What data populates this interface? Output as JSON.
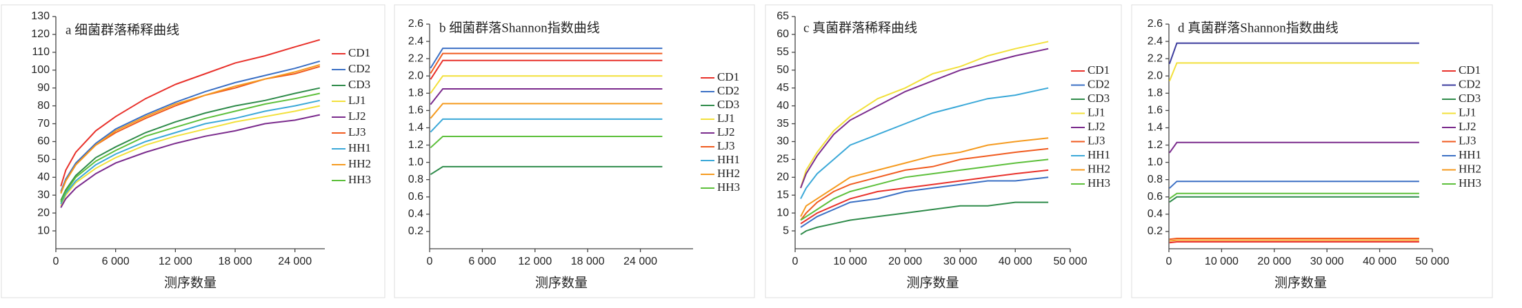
{
  "chart_data": [
    {
      "type": "line",
      "title": "a 细菌群落稀释曲线",
      "xlabel": "测序数量",
      "x": [
        500,
        1000,
        2000,
        4000,
        6000,
        9000,
        12000,
        15000,
        18000,
        21000,
        24000,
        26500
      ],
      "xlim": [
        0,
        27000
      ],
      "ylim": [
        0,
        130
      ],
      "xticks": [
        0,
        {
          "value": 6000,
          "label": "6 000"
        },
        {
          "value": 12000,
          "label": "12 000"
        },
        {
          "value": 18000,
          "label": "18 000"
        },
        {
          "value": 24000,
          "label": "24 000"
        }
      ],
      "yticks": [
        10,
        20,
        30,
        40,
        50,
        60,
        70,
        80,
        90,
        100,
        110,
        120,
        130
      ],
      "series": [
        {
          "name": "CD1",
          "color": "#e8302a",
          "values": [
            35,
            44,
            54,
            66,
            74,
            84,
            92,
            98,
            104,
            108,
            113,
            117
          ]
        },
        {
          "name": "CD2",
          "color": "#3a6fc4",
          "values": [
            32,
            39,
            48,
            59,
            67,
            75,
            82,
            88,
            93,
            97,
            101,
            105
          ]
        },
        {
          "name": "CD3",
          "color": "#2e8b4a",
          "values": [
            27,
            33,
            41,
            51,
            57,
            65,
            71,
            76,
            80,
            83,
            87,
            90
          ]
        },
        {
          "name": "LJ1",
          "color": "#f2e03a",
          "values": [
            24,
            30,
            37,
            45,
            51,
            58,
            63,
            67,
            71,
            74,
            77,
            80
          ]
        },
        {
          "name": "LJ2",
          "color": "#7a2a8c",
          "values": [
            23,
            28,
            34,
            42,
            48,
            54,
            59,
            63,
            66,
            70,
            72,
            75
          ]
        },
        {
          "name": "LJ3",
          "color": "#f05a1e",
          "values": [
            31,
            38,
            47,
            58,
            65,
            73,
            80,
            86,
            90,
            95,
            98,
            102
          ]
        },
        {
          "name": "HH1",
          "color": "#3aa8d8",
          "values": [
            25,
            31,
            38,
            47,
            53,
            60,
            65,
            70,
            73,
            77,
            80,
            83
          ]
        },
        {
          "name": "HH2",
          "color": "#f59a1e",
          "values": [
            31,
            38,
            47,
            58,
            66,
            74,
            81,
            86,
            91,
            95,
            99,
            103
          ]
        },
        {
          "name": "HH3",
          "color": "#5cbf3a",
          "values": [
            26,
            32,
            40,
            49,
            55,
            63,
            68,
            73,
            77,
            81,
            84,
            87
          ]
        }
      ]
    },
    {
      "type": "line",
      "title": "b 细菌群落Shannon指数曲线",
      "xlabel": "测序数量",
      "x": [
        100,
        1500,
        26500
      ],
      "xlim": [
        0,
        30000
      ],
      "ylim": [
        0,
        2.6
      ],
      "xticks": [
        0,
        {
          "value": 6000,
          "label": "6 000"
        },
        {
          "value": 12000,
          "label": "12 000"
        },
        {
          "value": 18000,
          "label": "18 000"
        },
        {
          "value": 24000,
          "label": "24 000"
        }
      ],
      "yticks": [
        0.2,
        0.4,
        0.6,
        0.8,
        {
          "value": 1,
          "label": "1.0"
        },
        1.2,
        1.4,
        1.6,
        1.8,
        {
          "value": 2,
          "label": "2.0"
        },
        2.2,
        2.4,
        2.6
      ],
      "series": [
        {
          "name": "CD1",
          "color": "#e8302a",
          "values": [
            1.96,
            2.18,
            2.18
          ]
        },
        {
          "name": "CD2",
          "color": "#3a6fc4",
          "values": [
            2.09,
            2.32,
            2.32
          ]
        },
        {
          "name": "CD3",
          "color": "#2e8b4a",
          "values": [
            0.86,
            0.95,
            0.95
          ]
        },
        {
          "name": "LJ1",
          "color": "#f2e03a",
          "values": [
            1.8,
            2,
            2
          ]
        },
        {
          "name": "LJ2",
          "color": "#7a2a8c",
          "values": [
            1.67,
            1.85,
            1.85
          ]
        },
        {
          "name": "LJ3",
          "color": "#f05a1e",
          "values": [
            2.03,
            2.26,
            2.26
          ]
        },
        {
          "name": "HH1",
          "color": "#3aa8d8",
          "values": [
            1.35,
            1.5,
            1.5
          ]
        },
        {
          "name": "HH2",
          "color": "#f59a1e",
          "values": [
            1.51,
            1.68,
            1.68
          ]
        },
        {
          "name": "HH3",
          "color": "#5cbf3a",
          "values": [
            1.17,
            1.3,
            1.3
          ]
        }
      ]
    },
    {
      "type": "line",
      "title": "c 真菌群落稀释曲线",
      "xlabel": "测序数量",
      "x": [
        1000,
        2000,
        4000,
        7000,
        10000,
        15000,
        20000,
        25000,
        30000,
        35000,
        40000,
        46000
      ],
      "xlim": [
        0,
        50000
      ],
      "ylim": [
        0,
        65
      ],
      "xticks": [
        0,
        {
          "value": 10000,
          "label": "10 000"
        },
        {
          "value": 20000,
          "label": "20 000"
        },
        {
          "value": 30000,
          "label": "30 000"
        },
        {
          "value": 40000,
          "label": "40 000"
        },
        {
          "value": 50000,
          "label": "50 000"
        }
      ],
      "yticks": [
        5,
        10,
        15,
        20,
        25,
        30,
        35,
        40,
        45,
        50,
        55,
        60,
        65
      ],
      "series": [
        {
          "name": "CD1",
          "color": "#e8302a",
          "values": [
            7,
            8,
            10,
            12,
            14,
            16,
            17,
            18,
            19,
            20,
            21,
            22
          ]
        },
        {
          "name": "CD2",
          "color": "#3a6fc4",
          "values": [
            6,
            7,
            9,
            11,
            13,
            14,
            16,
            17,
            18,
            19,
            19,
            20
          ]
        },
        {
          "name": "CD3",
          "color": "#2e8b4a",
          "values": [
            4,
            5,
            6,
            7,
            8,
            9,
            10,
            11,
            12,
            12,
            13,
            13
          ]
        },
        {
          "name": "LJ1",
          "color": "#f2e03a",
          "values": [
            17,
            22,
            27,
            33,
            37,
            42,
            45,
            49,
            51,
            54,
            56,
            58
          ]
        },
        {
          "name": "LJ2",
          "color": "#7a2a8c",
          "values": [
            17,
            21,
            26,
            32,
            36,
            40,
            44,
            47,
            50,
            52,
            54,
            56
          ]
        },
        {
          "name": "LJ3",
          "color": "#f05a1e",
          "values": [
            8,
            10,
            13,
            16,
            18,
            20,
            22,
            23,
            25,
            26,
            27,
            28
          ]
        },
        {
          "name": "HH1",
          "color": "#3aa8d8",
          "values": [
            14,
            17,
            21,
            25,
            29,
            32,
            35,
            38,
            40,
            42,
            43,
            45
          ]
        },
        {
          "name": "HH2",
          "color": "#f59a1e",
          "values": [
            9,
            12,
            14,
            17,
            20,
            22,
            24,
            26,
            27,
            29,
            30,
            31
          ]
        },
        {
          "name": "HH3",
          "color": "#5cbf3a",
          "values": [
            8,
            9,
            11,
            14,
            16,
            18,
            20,
            21,
            22,
            23,
            24,
            25
          ]
        }
      ]
    },
    {
      "type": "line",
      "title": "d 真菌群落Shannon指数曲线",
      "xlabel": "测序数量",
      "x": [
        100,
        1500,
        47500
      ],
      "xlim": [
        0,
        50000
      ],
      "ylim": [
        0,
        2.6
      ],
      "xticks": [
        0,
        {
          "value": 10000,
          "label": "10 000"
        },
        {
          "value": 20000,
          "label": "20 000"
        },
        {
          "value": 30000,
          "label": "30 000"
        },
        {
          "value": 40000,
          "label": "40 000"
        },
        {
          "value": 50000,
          "label": "50 000"
        }
      ],
      "yticks": [
        0.2,
        0.4,
        0.6,
        0.8,
        {
          "value": 1,
          "label": "1.0"
        },
        1.2,
        1.4,
        1.6,
        1.8,
        {
          "value": 2,
          "label": "2.0"
        },
        2.2,
        2.4,
        2.6
      ],
      "series": [
        {
          "name": "CD1",
          "color": "#e8302a",
          "values": [
            0.07,
            0.08,
            0.08
          ]
        },
        {
          "name": "CD2",
          "color": "#3a3a9c",
          "values": [
            2.14,
            2.38,
            2.38
          ]
        },
        {
          "name": "CD3",
          "color": "#2e8b4a",
          "values": [
            0.54,
            0.6,
            0.6
          ]
        },
        {
          "name": "LJ1",
          "color": "#f2e03a",
          "values": [
            1.94,
            2.15,
            2.15
          ]
        },
        {
          "name": "LJ2",
          "color": "#7a2a8c",
          "values": [
            1.11,
            1.23,
            1.23
          ]
        },
        {
          "name": "LJ3",
          "color": "#f05a1e",
          "values": [
            0.11,
            0.12,
            0.12
          ]
        },
        {
          "name": "HH1",
          "color": "#3a6fc4",
          "values": [
            0.7,
            0.78,
            0.78
          ]
        },
        {
          "name": "HH2",
          "color": "#f59a1e",
          "values": [
            0.09,
            0.1,
            0.1
          ]
        },
        {
          "name": "HH3",
          "color": "#5cbf3a",
          "values": [
            0.58,
            0.64,
            0.64
          ]
        }
      ]
    }
  ]
}
